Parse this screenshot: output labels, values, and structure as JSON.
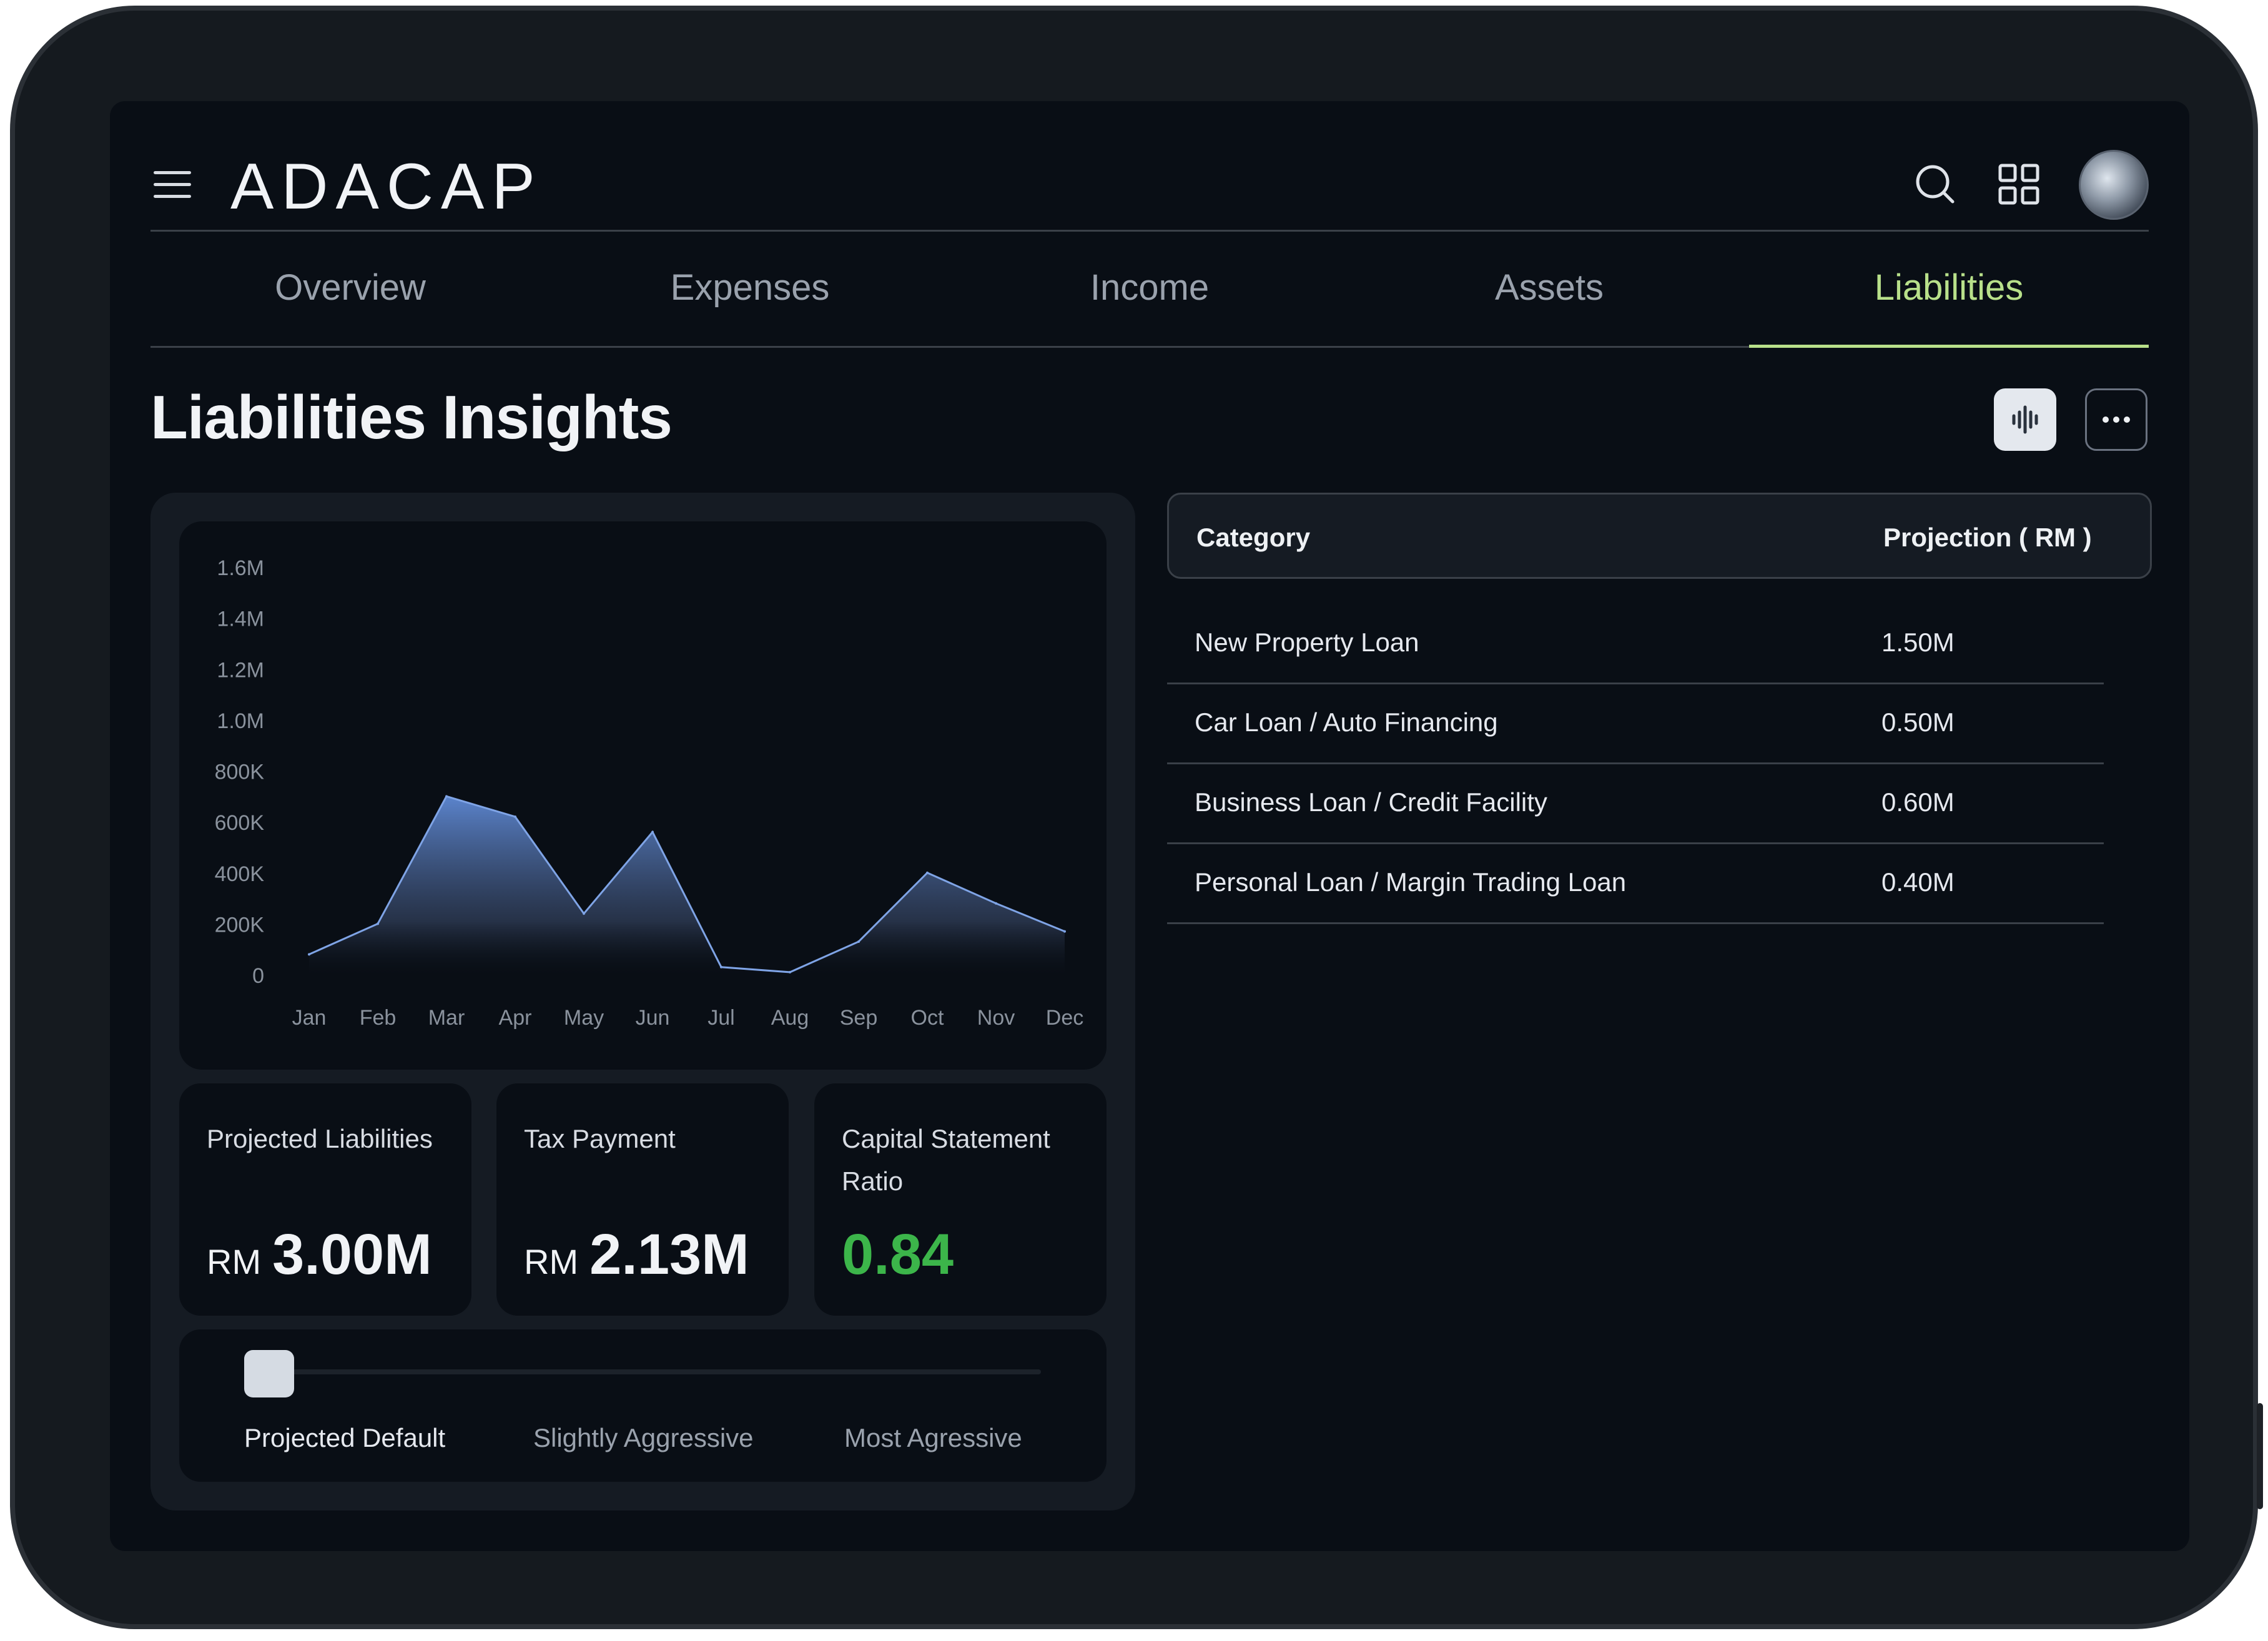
{
  "header": {
    "logo": "ADACAP",
    "icons": [
      "menu-icon",
      "search-icon",
      "grid-icon"
    ]
  },
  "tabs": [
    {
      "label": "Overview",
      "active": false
    },
    {
      "label": "Expenses",
      "active": false
    },
    {
      "label": "Income",
      "active": false
    },
    {
      "label": "Assets",
      "active": false
    },
    {
      "label": "Liabilities",
      "active": true
    }
  ],
  "page": {
    "title": "Liabilities Insights",
    "actions": [
      "waveform-icon",
      "more-icon"
    ]
  },
  "colors": {
    "accent": "#b8e08a",
    "chart_top": "#5f8ad6",
    "ratio_green": "#3cb54a"
  },
  "chart_data": {
    "type": "area",
    "categories": [
      "Jan",
      "Feb",
      "Mar",
      "Apr",
      "May",
      "Jun",
      "Jul",
      "Aug",
      "Sep",
      "Oct",
      "Nov",
      "Dec"
    ],
    "values": [
      80000,
      200000,
      700000,
      620000,
      240000,
      560000,
      30000,
      10000,
      130000,
      400000,
      280000,
      170000
    ],
    "ylim": [
      0,
      1600000
    ],
    "yticks": [
      "0",
      "200K",
      "400K",
      "600K",
      "800K",
      "1.0M",
      "1.2M",
      "1.4M",
      "1.6M"
    ],
    "grid": false
  },
  "stats": [
    {
      "label": "Projected Liabilities",
      "currency": "RM",
      "value": "3.00M"
    },
    {
      "label": "Tax Payment",
      "currency": "RM",
      "value": "2.13M"
    },
    {
      "label": "Capital Statement Ratio",
      "currency": "",
      "value": "0.84"
    }
  ],
  "slider": {
    "options": [
      "Projected Default",
      "Slightly Aggressive",
      "Most Agressive"
    ],
    "selected_index": 0
  },
  "table": {
    "headers": [
      "Category",
      "Projection ( RM )"
    ],
    "rows": [
      {
        "category": "New Property Loan",
        "projection": "1.50M"
      },
      {
        "category": "Car Loan / Auto Financing",
        "projection": "0.50M"
      },
      {
        "category": "Business Loan / Credit Facility",
        "projection": "0.60M"
      },
      {
        "category": "Personal Loan / Margin Trading Loan",
        "projection": "0.40M"
      }
    ]
  }
}
